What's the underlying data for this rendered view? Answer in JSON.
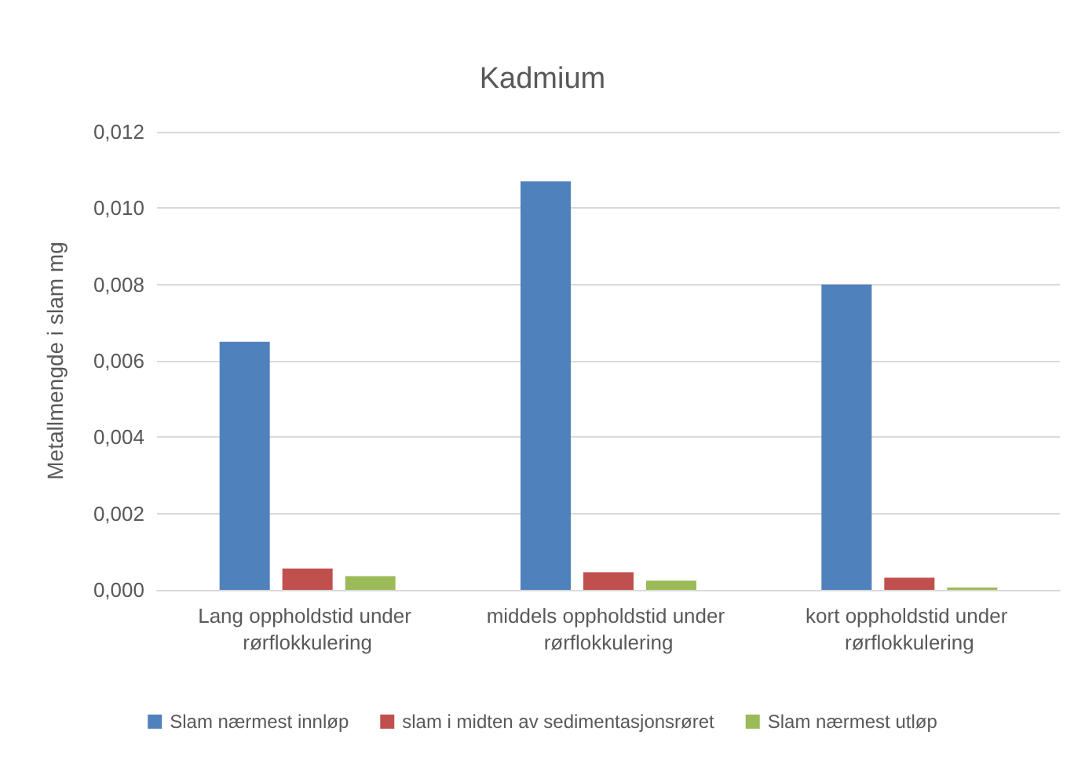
{
  "chart_data": {
    "type": "bar",
    "title": "Kadmium",
    "ylabel": "Metallmengde i slam mg",
    "categories": [
      "Lang oppholdstid under rørflokkulering",
      "middels oppholdstid under rørflokkulering",
      "kort oppholdstid under rørflokkulering"
    ],
    "series": [
      {
        "name": "Slam nærmest innløp",
        "color": "#4f81bd",
        "values": [
          0.0065,
          0.0107,
          0.008
        ]
      },
      {
        "name": "slam i midten av sedimentasjonsrøret",
        "color": "#c0504d",
        "values": [
          0.00056,
          0.00046,
          0.00032
        ]
      },
      {
        "name": "Slam nærmest utløp",
        "color": "#9bbb59",
        "values": [
          0.00036,
          0.00024,
          6e-05
        ]
      }
    ],
    "ylim": [
      0,
      0.012
    ],
    "yticks": [
      {
        "value": 0,
        "label": "0,000"
      },
      {
        "value": 0.002,
        "label": "0,002"
      },
      {
        "value": 0.004,
        "label": "0,004"
      },
      {
        "value": 0.006,
        "label": "0,006"
      },
      {
        "value": 0.008,
        "label": "0,008"
      },
      {
        "value": 0.01,
        "label": "0,010"
      },
      {
        "value": 0.012,
        "label": "0,012"
      }
    ],
    "grid": "y",
    "legend": "bottom"
  }
}
